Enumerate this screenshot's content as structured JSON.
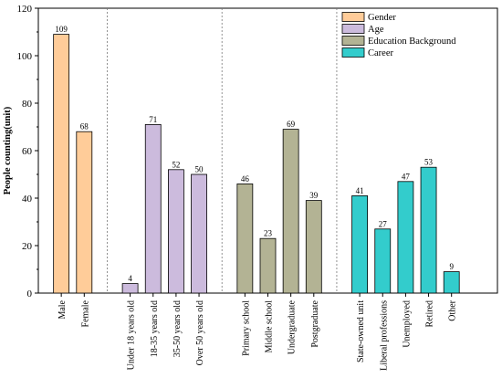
{
  "chart_data": {
    "type": "bar",
    "title": "",
    "xlabel": "",
    "ylabel": "People counting(unit)",
    "ylim": [
      0,
      120
    ],
    "yticks": [
      0,
      20,
      40,
      60,
      80,
      100,
      120
    ],
    "grid": false,
    "legend_position": "top-right",
    "groups": [
      {
        "name": "Gender",
        "color": "#FFCC99",
        "categories": [
          "Male",
          "Female"
        ],
        "values": [
          109,
          68
        ]
      },
      {
        "name": "Age",
        "color": "#CCBBDD",
        "categories": [
          "Under 18 years old",
          "18-35 years old",
          "35-50 years old",
          "Over 50 years old"
        ],
        "values": [
          4,
          71,
          52,
          50
        ]
      },
      {
        "name": "Education Background",
        "color": "#B3B394",
        "categories": [
          "Primary school",
          "Middle school",
          "Undergraduate",
          "Postgraduate"
        ],
        "values": [
          46,
          23,
          69,
          39
        ]
      },
      {
        "name": "Career",
        "color": "#33CCCC",
        "categories": [
          "State-owned unit",
          "Liberal professions",
          "Unemployed",
          "Retired",
          "Other"
        ],
        "values": [
          41,
          27,
          47,
          53,
          9
        ]
      }
    ]
  }
}
